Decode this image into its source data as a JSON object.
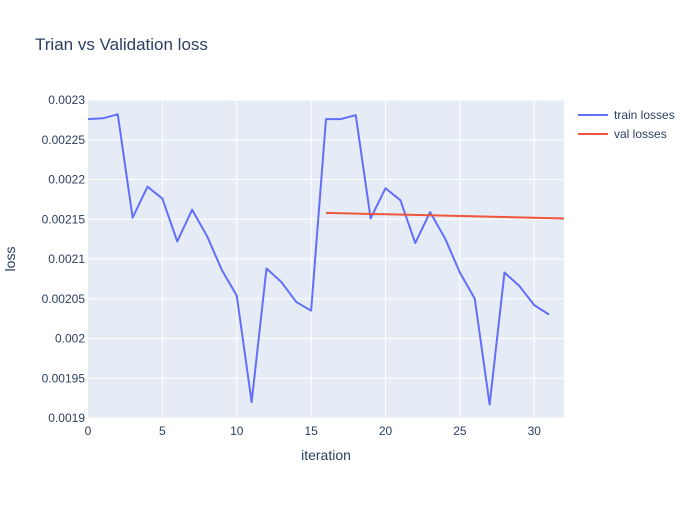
{
  "chart_data": {
    "type": "line",
    "title": "Trian vs Validation loss",
    "xlabel": "iteration",
    "ylabel": "loss",
    "xlim": [
      0,
      32
    ],
    "ylim": [
      0.0019,
      0.0023
    ],
    "x_ticks": [
      0,
      5,
      10,
      15,
      20,
      25,
      30
    ],
    "x_tick_labels": [
      "0",
      "5",
      "10",
      "15",
      "20",
      "25",
      "30"
    ],
    "y_ticks": [
      0.0019,
      0.00195,
      0.002,
      0.00205,
      0.0021,
      0.00215,
      0.0022,
      0.00225,
      0.0023
    ],
    "y_tick_labels": [
      "0.0019",
      "0.00195",
      "0.002",
      "0.00205",
      "0.0021",
      "0.00215",
      "0.0022",
      "0.00225",
      "0.0023"
    ],
    "grid": true,
    "legend_position": "top-right",
    "series": [
      {
        "name": "train losses",
        "color": "#636efa",
        "x": [
          0,
          1,
          2,
          3,
          4,
          5,
          6,
          7,
          8,
          9,
          10,
          11,
          12,
          13,
          14,
          15,
          16,
          17,
          18,
          19,
          20,
          21,
          22,
          23,
          24,
          25,
          26,
          27,
          28,
          29,
          30,
          31
        ],
        "y": [
          0.002276,
          0.002277,
          0.002282,
          0.002152,
          0.002191,
          0.002176,
          0.002122,
          0.002162,
          0.002129,
          0.002086,
          0.002054,
          0.00192,
          0.002088,
          0.002071,
          0.002046,
          0.002035,
          0.002276,
          0.002276,
          0.002281,
          0.002151,
          0.002189,
          0.002174,
          0.00212,
          0.002159,
          0.002126,
          0.002083,
          0.00205,
          0.001917,
          0.002083,
          0.002066,
          0.002042,
          0.00203
        ]
      },
      {
        "name": "val losses",
        "color": "#ef553b",
        "x": [
          16,
          32
        ],
        "y": [
          0.002158,
          0.002151
        ]
      }
    ]
  }
}
